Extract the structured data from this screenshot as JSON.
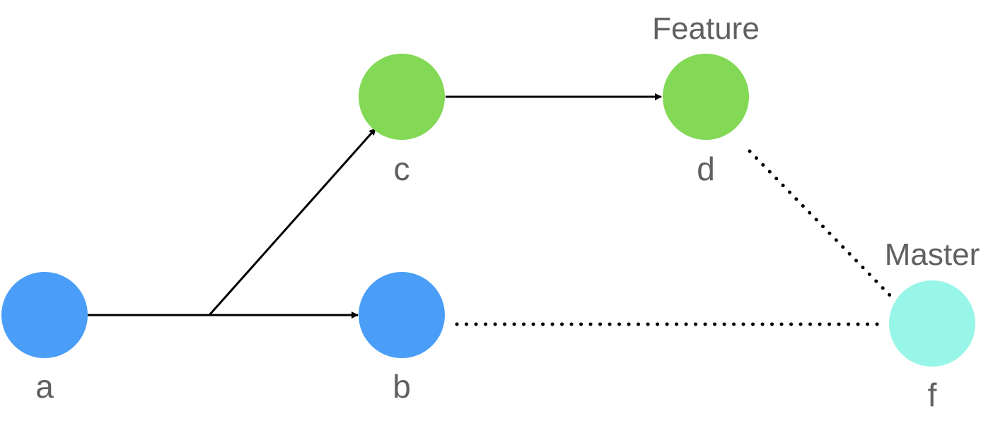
{
  "nodes": {
    "a": {
      "label": "a",
      "color": "#4A9EF7"
    },
    "b": {
      "label": "b",
      "color": "#4A9EF7"
    },
    "c": {
      "label": "c",
      "color": "#83D855"
    },
    "d": {
      "label": "d",
      "color": "#83D855"
    },
    "f": {
      "label": "f",
      "color": "#98F6E8"
    }
  },
  "branches": {
    "feature": "Feature",
    "master": "Master"
  },
  "edge_color": "#000000"
}
